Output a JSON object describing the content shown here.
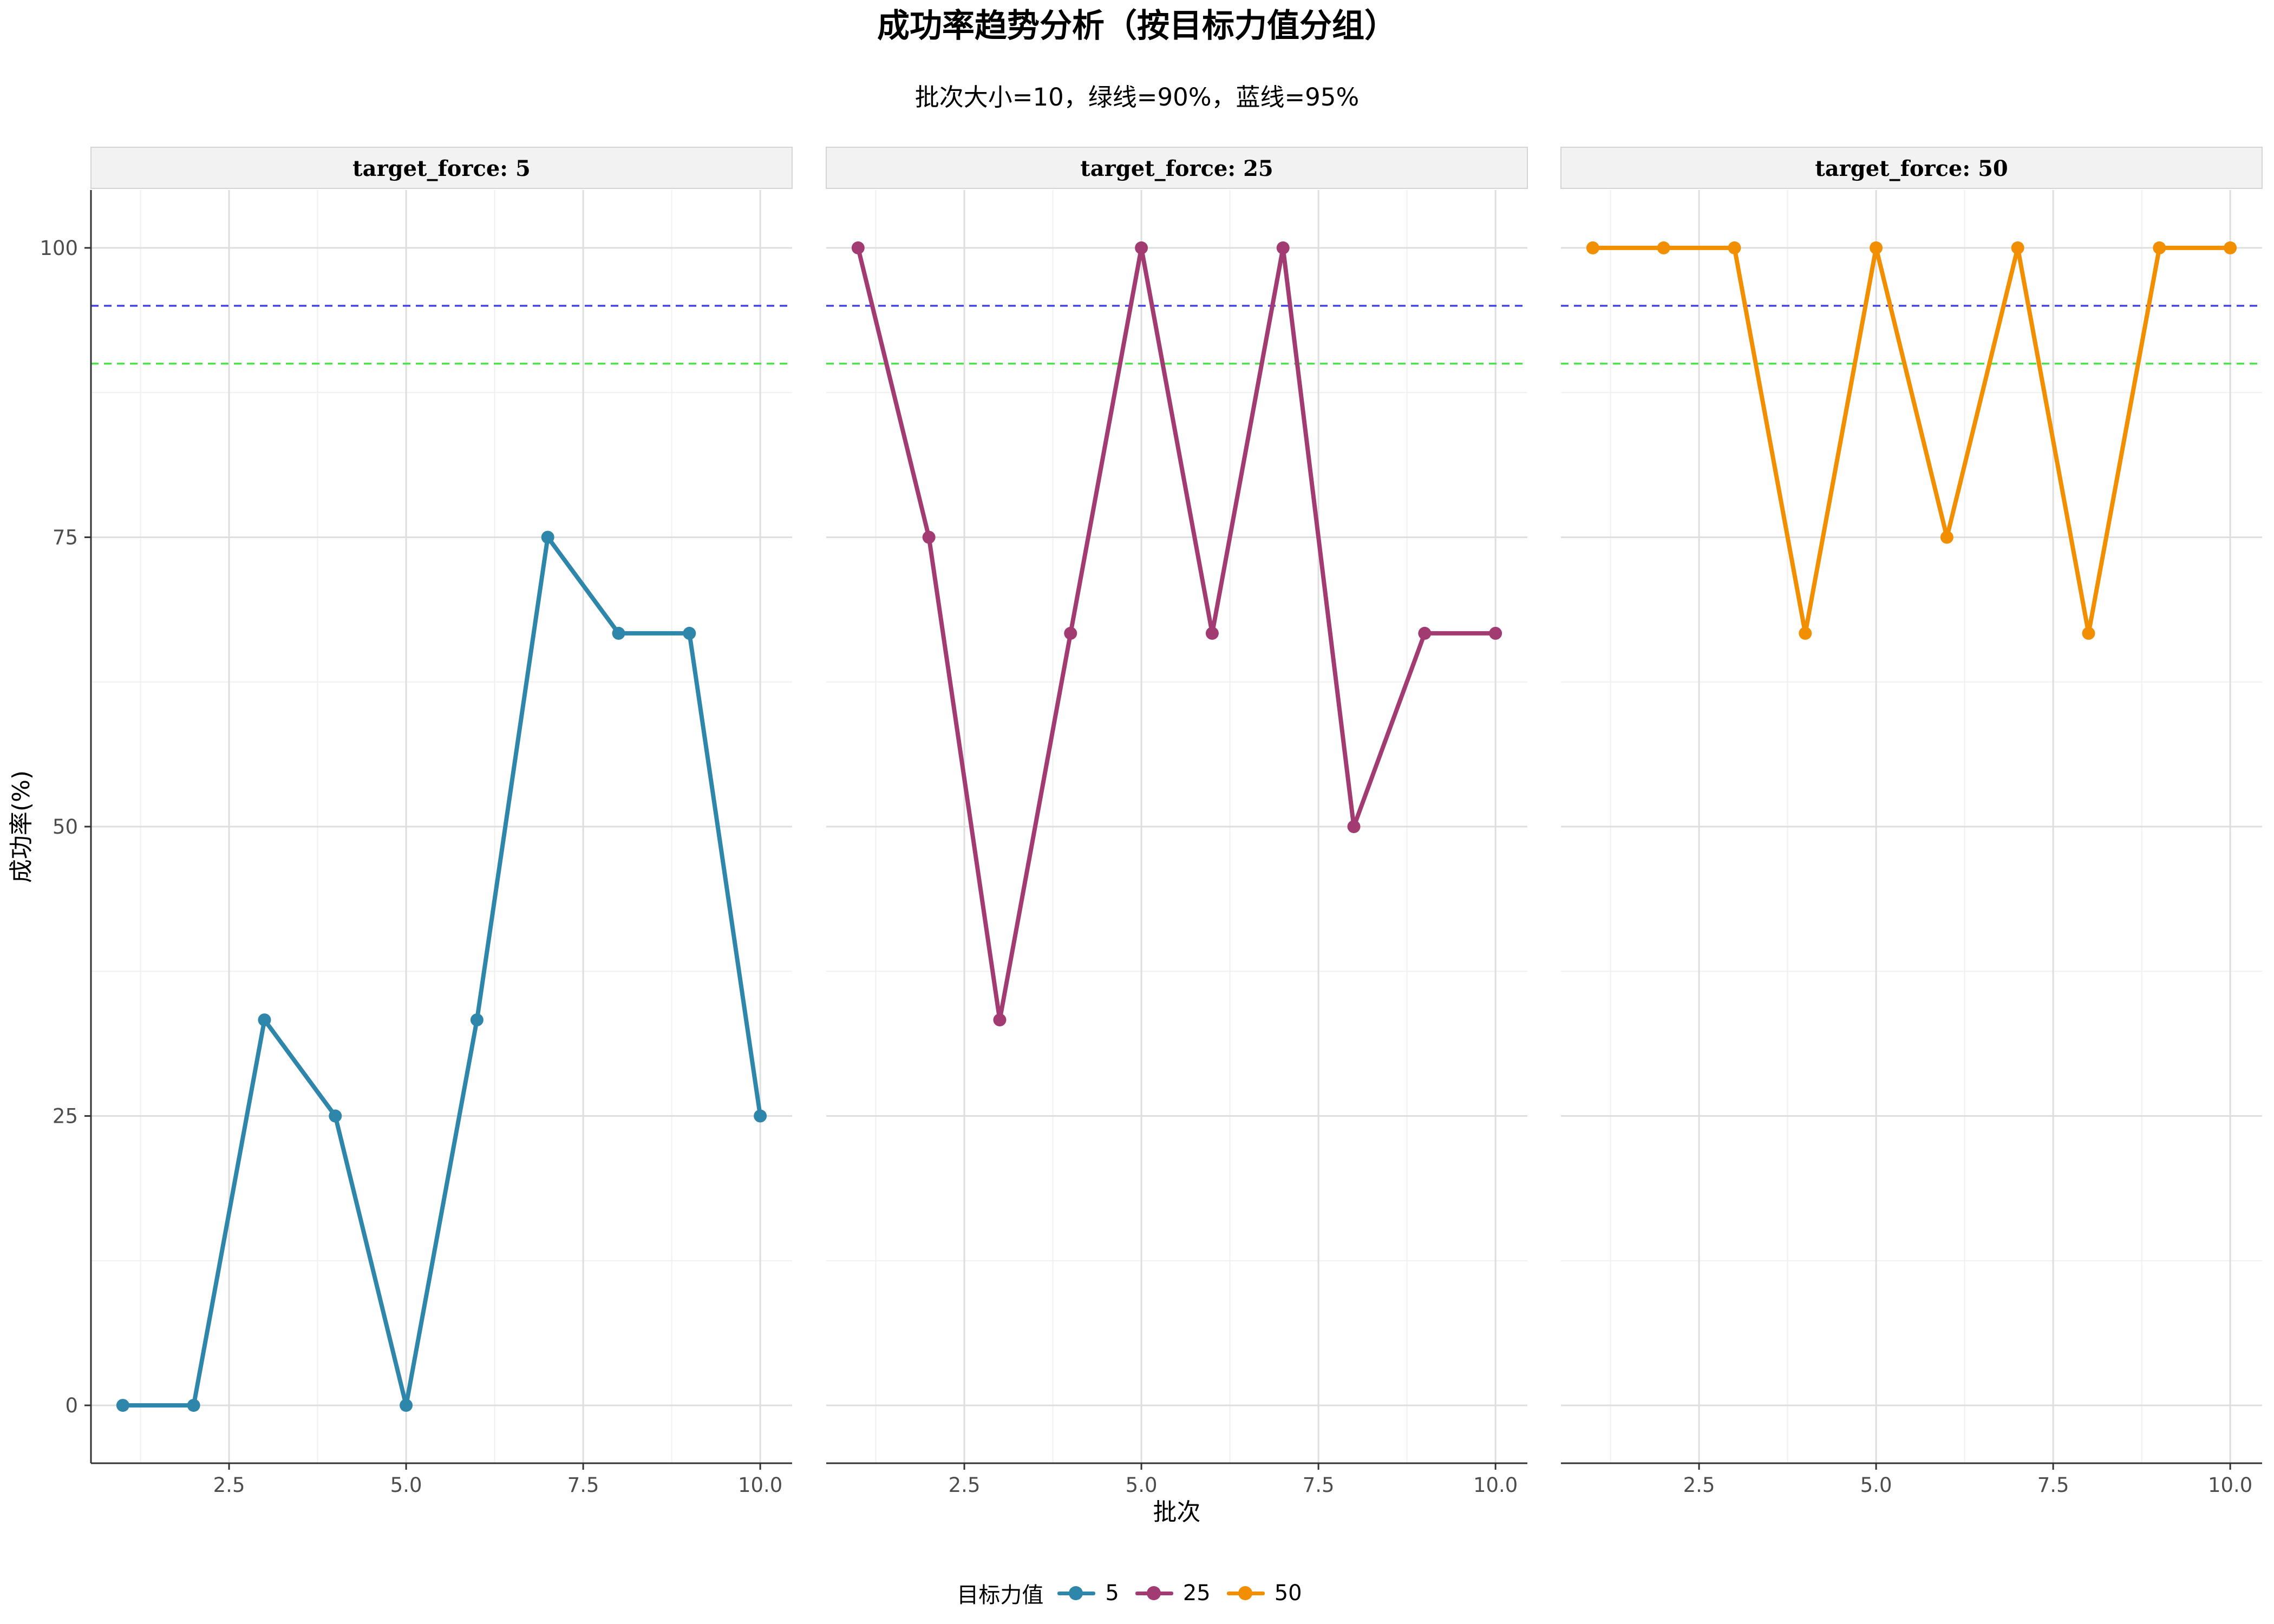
{
  "chart_data": {
    "type": "line",
    "title": "成功率趋势分析（按目标力值分组）",
    "subtitle": "批次大小=10，绿线=90%，蓝线=95%",
    "xlabel": "批次",
    "ylabel": "成功率(%)",
    "xlim": [
      0.55,
      10.45
    ],
    "ylim": [
      -5,
      105
    ],
    "x_ticks": [
      2.5,
      5.0,
      7.5,
      10.0
    ],
    "x_tick_labels": [
      "2.5",
      "5.0",
      "7.5",
      "10.0"
    ],
    "y_ticks": [
      0,
      25,
      50,
      75,
      100
    ],
    "y_tick_labels": [
      "0",
      "25",
      "50",
      "75",
      "100"
    ],
    "grid": true,
    "legend_position": "bottom",
    "legend_title": "目标力值",
    "reference_lines": [
      {
        "y": 90,
        "color": "#4ce34c",
        "style": "dashed"
      },
      {
        "y": 95,
        "color": "#4545f0",
        "style": "dashed"
      }
    ],
    "x": [
      1,
      2,
      3,
      4,
      5,
      6,
      7,
      8,
      9,
      10
    ],
    "series": [
      {
        "name": "5",
        "facet_label": "target_force: 5",
        "color": "#2e86ab",
        "values": [
          0,
          0,
          33.3,
          25,
          0,
          33.3,
          75,
          66.7,
          66.7,
          25
        ]
      },
      {
        "name": "25",
        "facet_label": "target_force: 25",
        "color": "#a23b72",
        "values": [
          100,
          75,
          33.3,
          66.7,
          100,
          66.7,
          100,
          50,
          66.7,
          66.7
        ]
      },
      {
        "name": "50",
        "facet_label": "target_force: 50",
        "color": "#f18f01",
        "values": [
          100,
          100,
          100,
          66.7,
          100,
          75,
          100,
          66.7,
          100,
          100
        ]
      }
    ]
  }
}
